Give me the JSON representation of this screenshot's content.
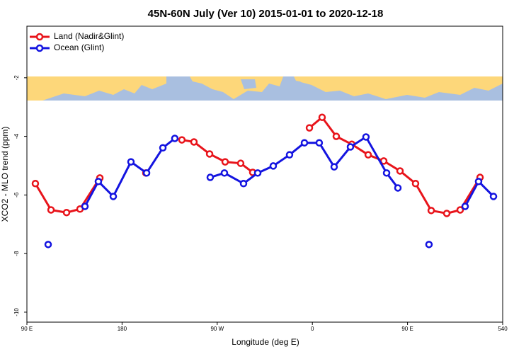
{
  "chart_data": {
    "type": "line",
    "title": "45N-60N July (Ver 10)   2015-01-01 to 2020-12-18",
    "xlabel": "Longitude (deg E)",
    "ylabel": "XCO2 - MLO trend (ppm)",
    "xlim": [
      90,
      540
    ],
    "xticks": [
      {
        "value": 90,
        "label": "90 E"
      },
      180,
      {
        "value": 270,
        "label": "90 W"
      },
      {
        "value": 360,
        "label": "0"
      },
      {
        "value": 450,
        "label": "90 E"
      },
      540
    ],
    "ylim": [
      -10.34,
      -0.24
    ],
    "yticks": [
      -10,
      -8,
      -6,
      -4,
      -2
    ],
    "legend": "top-left",
    "series": [
      {
        "name": "Land (Nadir&Glint)",
        "color": "#e8141b",
        "x": [
          98,
          112.8,
          127.5,
          140.2,
          159,
          null,
          202.5,
          null,
          236.6,
          248,
          262.8,
          277.5,
          292.2,
          303.6,
          null,
          357.2,
          369.2,
          382.6,
          397.3,
          412.8,
          427.5,
          442.9,
          457.6,
          472.4,
          487.1,
          499.8,
          518.6
        ],
        "values": [
          -5.61,
          -6.51,
          -6.6,
          -6.48,
          -5.42,
          null,
          -5.25,
          null,
          -4.12,
          -4.19,
          -4.6,
          -4.87,
          -4.92,
          -5.23,
          null,
          -3.71,
          -3.35,
          -4.0,
          -4.27,
          -4.63,
          -4.84,
          -5.18,
          -5.61,
          -6.53,
          -6.63,
          -6.51,
          -5.4
        ]
      },
      {
        "name": "Ocean (Glint)",
        "color": "#1414e0",
        "x": [
          110.1,
          null,
          144.9,
          157.6,
          171.7,
          188.4,
          203.2,
          218.6,
          229.9,
          null,
          263.4,
          276.8,
          294.9,
          308.3,
          323.0,
          338.4,
          352.5,
          366.5,
          380.6,
          396.0,
          410.7,
          430.2,
          440.9,
          null,
          470.3,
          null,
          504.5,
          517.2,
          531.3
        ],
        "values": [
          -7.69,
          null,
          -6.39,
          -5.54,
          -6.05,
          -4.87,
          -5.25,
          -4.39,
          -4.07,
          null,
          -5.4,
          -5.25,
          -5.61,
          -5.25,
          -5.01,
          -4.63,
          -4.22,
          -4.22,
          -5.04,
          -4.36,
          -4.02,
          -5.25,
          -5.76,
          null,
          -7.69,
          null,
          -6.39,
          -5.54,
          -6.05
        ]
      }
    ]
  }
}
